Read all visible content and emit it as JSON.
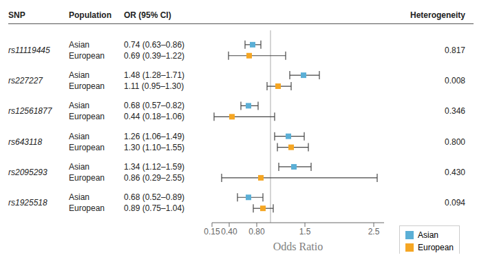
{
  "chart_data": {
    "type": "forest",
    "columns": [
      "SNP",
      "Population",
      "OR (95% CI)",
      "Heterogeneity"
    ],
    "categories": [
      "rs11119445",
      "rs227227",
      "rs12561877",
      "rs643118",
      "rs2095293",
      "rs1925518"
    ],
    "series": [
      {
        "name": "Asian",
        "color": "#5BAFD6",
        "marker": "square",
        "values": [
          0.74,
          1.48,
          0.68,
          1.26,
          1.34,
          0.68
        ],
        "ci_lo": [
          0.63,
          1.28,
          0.57,
          1.06,
          1.12,
          0.52
        ],
        "ci_hi": [
          0.86,
          1.71,
          0.82,
          1.49,
          1.59,
          0.89
        ],
        "value_labels": [
          "0.74 (0.63–0.86)",
          "1.48 (1.28–1.71)",
          "0.68 (0.57–0.82)",
          "1.26 (1.06–1.49)",
          "1.34 (1.12–1.59)",
          "0.68 (0.52–0.89)"
        ]
      },
      {
        "name": "European",
        "color": "#F5A623",
        "marker": "square",
        "values": [
          0.69,
          1.11,
          0.44,
          1.3,
          0.86,
          0.89
        ],
        "ci_lo": [
          0.39,
          0.95,
          0.18,
          1.1,
          0.29,
          0.75
        ],
        "ci_hi": [
          1.22,
          1.3,
          1.06,
          1.55,
          2.55,
          1.04
        ],
        "value_labels": [
          "0.69 (0.39–1.22)",
          "1.11 (0.95–1.30)",
          "0.44 (0.18–1.06)",
          "1.30 (1.10–1.55)",
          "0.86 (0.29–2.55)",
          "0.89 (0.75–1.04)"
        ]
      }
    ],
    "heterogeneity": [
      0.817,
      0.008,
      0.346,
      0.8,
      0.43,
      0.094
    ],
    "heterogeneity_labels": [
      "0.817",
      "0.008",
      "0.346",
      "0.800",
      "0.430",
      "0.094"
    ],
    "reference_line": 1.0,
    "xlabel": "Odds Ratio",
    "xlim": [
      0.15,
      2.65
    ],
    "xticks": [
      0.15,
      {
        "value": 0.4,
        "label": "0.40"
      },
      {
        "value": 0.8,
        "label": "0.80"
      },
      1.5,
      2.5
    ],
    "legend": "lower right",
    "grid": false
  }
}
